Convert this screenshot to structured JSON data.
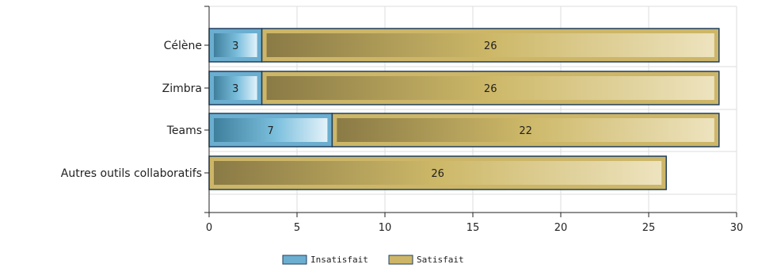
{
  "chart_data": {
    "type": "bar",
    "orientation": "horizontal",
    "stacked": true,
    "categories": [
      "Célène",
      "Zimbra",
      "Teams",
      "Autres outils collaboratifs"
    ],
    "series": [
      {
        "name": "Insatisfait",
        "values": [
          3,
          3,
          7,
          0
        ],
        "color": "#6BAED0"
      },
      {
        "name": "Satisfait",
        "values": [
          26,
          26,
          22,
          26
        ],
        "color": "#CDB668"
      }
    ],
    "xlim": [
      0,
      30
    ],
    "xticks": [
      0,
      5,
      10,
      15,
      20,
      25,
      30
    ],
    "grid": true,
    "legend_position": "bottom",
    "title": "",
    "xlabel": "",
    "ylabel": ""
  },
  "colors": {
    "outline": "#1F3F5F",
    "grid": "#DDDDDD",
    "axis": "#222222"
  }
}
